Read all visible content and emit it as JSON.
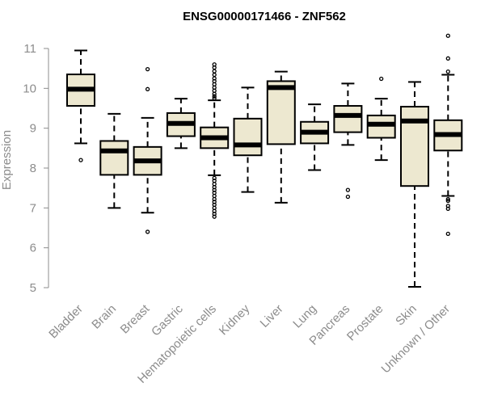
{
  "chart_data": {
    "type": "boxplot",
    "title": "ENSG00000171466 - ZNF562",
    "xlabel": "",
    "ylabel": "Expression",
    "ylim": [
      5,
      11.3
    ],
    "yticks": [
      5,
      6,
      7,
      8,
      9,
      10,
      11
    ],
    "box_color": "#ede8d0",
    "categories": [
      "Bladder",
      "Brain",
      "Breast",
      "Gastric",
      "Hematopoietic cells",
      "Kidney",
      "Liver",
      "Lung",
      "Pancreas",
      "Prostate",
      "Skin",
      "Unknown / Other"
    ],
    "boxes": [
      {
        "name": "Bladder",
        "min": 8.62,
        "q1": 9.56,
        "median": 9.98,
        "q3": 10.35,
        "max": 10.95,
        "outliers": [
          8.2
        ]
      },
      {
        "name": "Brain",
        "min": 7.0,
        "q1": 7.83,
        "median": 8.43,
        "q3": 8.68,
        "max": 9.36,
        "outliers": []
      },
      {
        "name": "Breast",
        "min": 6.88,
        "q1": 7.83,
        "median": 8.18,
        "q3": 8.53,
        "max": 9.26,
        "outliers": [
          10.48,
          9.98,
          6.4
        ]
      },
      {
        "name": "Gastric",
        "min": 8.5,
        "q1": 8.8,
        "median": 9.12,
        "q3": 9.38,
        "max": 9.74,
        "outliers": []
      },
      {
        "name": "Hematopoietic cells",
        "min": 7.82,
        "q1": 8.5,
        "median": 8.76,
        "q3": 9.02,
        "max": 9.7,
        "outliers": [
          10.6,
          10.52,
          10.43,
          10.34,
          10.25,
          10.18,
          10.1,
          10.02,
          9.94,
          9.86,
          9.8,
          9.75,
          7.75,
          7.68,
          7.6,
          7.52,
          7.45,
          7.38,
          7.3,
          7.22,
          7.15,
          7.08,
          7.0,
          6.92,
          6.85,
          6.78
        ]
      },
      {
        "name": "Kidney",
        "min": 7.4,
        "q1": 8.32,
        "median": 8.58,
        "q3": 9.24,
        "max": 10.02,
        "outliers": []
      },
      {
        "name": "Liver",
        "min": 7.13,
        "q1": 8.6,
        "median": 10.02,
        "q3": 10.18,
        "max": 10.42,
        "outliers": []
      },
      {
        "name": "Lung",
        "min": 7.95,
        "q1": 8.62,
        "median": 8.9,
        "q3": 9.16,
        "max": 9.6,
        "outliers": []
      },
      {
        "name": "Pancreas",
        "min": 8.58,
        "q1": 8.9,
        "median": 9.32,
        "q3": 9.56,
        "max": 10.12,
        "outliers": [
          7.45,
          7.28
        ]
      },
      {
        "name": "Prostate",
        "min": 8.2,
        "q1": 8.76,
        "median": 9.1,
        "q3": 9.32,
        "max": 9.74,
        "outliers": [
          10.24
        ]
      },
      {
        "name": "Skin",
        "min": 5.02,
        "q1": 7.55,
        "median": 9.18,
        "q3": 9.54,
        "max": 10.16,
        "outliers": []
      },
      {
        "name": "Unknown / Other",
        "min": 7.3,
        "q1": 8.44,
        "median": 8.84,
        "q3": 9.2,
        "max": 10.34,
        "outliers": [
          11.32,
          10.75,
          10.42,
          7.22,
          7.18,
          7.05,
          6.98,
          6.35
        ]
      }
    ]
  }
}
